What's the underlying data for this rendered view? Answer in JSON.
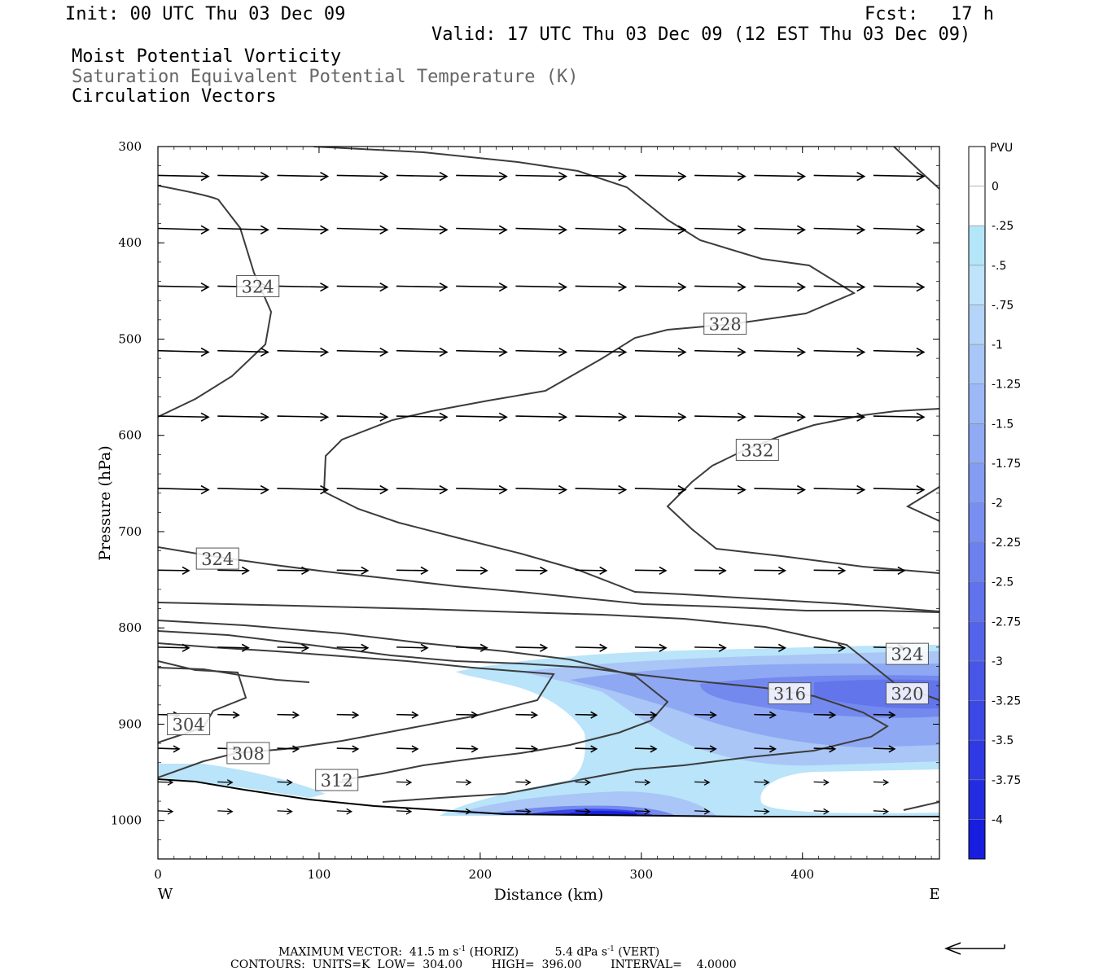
{
  "header": {
    "init": "Init: 00 UTC Thu 03 Dec 09",
    "fcst": "Fcst:   17 h",
    "valid": "Valid: 17 UTC Thu 03 Dec 09 (12 EST Thu 03 Dec 09)",
    "field1": "Moist Potential Vorticity",
    "field2": "Saturation Equivalent Potential Temperature (K)",
    "field3": "Circulation Vectors"
  },
  "footer": {
    "max_vector_label": "MAXIMUM VECTOR:",
    "max_horiz_value": "41.5",
    "max_horiz_unit": "m s",
    "exp": "-1",
    "max_horiz_tag": "(HORIZ)",
    "max_vert_value": "5.4",
    "max_vert_unit": "dPa s",
    "max_vert_tag": "(VERT)",
    "contours_line": "CONTOURS:  UNITS=K  LOW=  304.00        HIGH=  396.00        INTERVAL=    4.0000"
  },
  "chart_data": {
    "type": "cross-section",
    "xlabel": "Distance (km)",
    "ylabel": "Pressure (hPa)",
    "xlim": [
      0,
      485
    ],
    "ylim": [
      1040,
      300
    ],
    "x_ticks": [
      "0",
      "100",
      "200",
      "300",
      "400"
    ],
    "x_tick_values": [
      0,
      100,
      200,
      300,
      400
    ],
    "x_end_labels": {
      "left": "W",
      "right": "E"
    },
    "y_ticks": [
      "300",
      "400",
      "500",
      "600",
      "700",
      "800",
      "900",
      "1000"
    ],
    "y_tick_values": [
      300,
      400,
      500,
      600,
      700,
      800,
      900,
      1000
    ],
    "colorbar": {
      "unit": "PVU",
      "labels": [
        "0",
        "-.25",
        "-.5",
        "-.75",
        "-1",
        "-1.25",
        "-1.5",
        "-1.75",
        "-2",
        "-2.25",
        "-2.5",
        "-2.75",
        "-3",
        "-3.25",
        "-3.5",
        "-3.75",
        "-4"
      ],
      "colors": [
        "#ffffff",
        "#ffffff",
        "#b4e6fa",
        "#bfe3fa",
        "#b4d4fa",
        "#a8c6f8",
        "#9cb8f6",
        "#90aaf4",
        "#849cf2",
        "#788ef0",
        "#6c80ee",
        "#6072ec",
        "#5464ea",
        "#4856e8",
        "#3c48e6",
        "#303ae4",
        "#242ce2",
        "#181ee0"
      ]
    },
    "contour_labels": [
      {
        "text": "324",
        "x": 62,
        "p": 445
      },
      {
        "text": "328",
        "x": 352,
        "p": 484
      },
      {
        "text": "332",
        "x": 372,
        "p": 615
      },
      {
        "text": "324",
        "x": 37,
        "p": 728
      },
      {
        "text": "324",
        "x": 465,
        "p": 827
      },
      {
        "text": "316",
        "x": 392,
        "p": 868
      },
      {
        "text": "320",
        "x": 465,
        "p": 868
      },
      {
        "text": "304",
        "x": 19,
        "p": 900
      },
      {
        "text": "308",
        "x": 56,
        "p": 930
      },
      {
        "text": "312",
        "x": 111,
        "p": 958
      }
    ],
    "vector_levels_hPa": [
      330,
      385,
      445,
      512,
      580,
      655,
      740,
      820,
      890,
      925,
      960,
      990
    ],
    "vector_spacing_km": 37
  }
}
